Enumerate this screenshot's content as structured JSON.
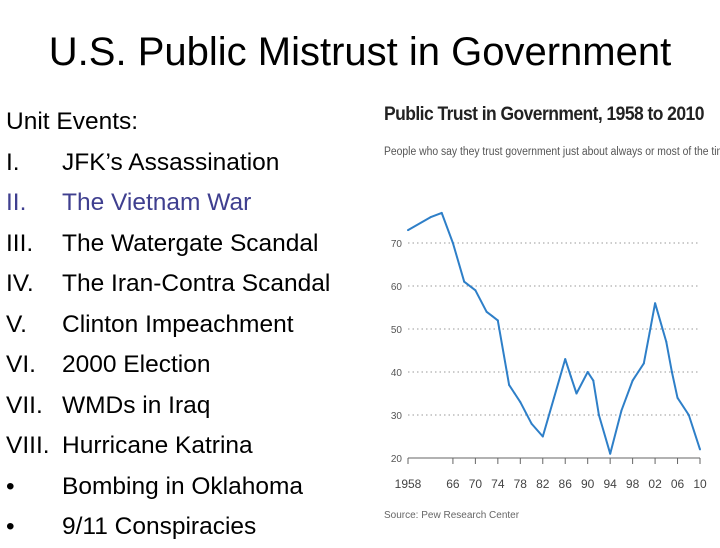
{
  "slide": {
    "title": "U.S. Public Mistrust in Government",
    "unit_heading": "Unit Events:",
    "events": [
      {
        "marker": "I.",
        "text": "JFK’s Assassination",
        "color": "#000000"
      },
      {
        "marker": "II.",
        "text": "The Vietnam War",
        "color": "#3f3f8f"
      },
      {
        "marker": "III.",
        "text": "The Watergate Scandal",
        "color": "#000000"
      },
      {
        "marker": "IV.",
        "text": "The Iran-Contra Scandal",
        "color": "#000000"
      },
      {
        "marker": "V.",
        "text": "Clinton Impeachment",
        "color": "#000000"
      },
      {
        "marker": "VI.",
        "text": "2000 Election",
        "color": "#000000"
      },
      {
        "marker": "VII.",
        "text": "WMDs in Iraq",
        "color": "#000000"
      },
      {
        "marker": "VIII.",
        "text": "Hurricane Katrina",
        "color": "#000000"
      },
      {
        "marker": "•",
        "text": "Bombing in Oklahoma",
        "color": "#000000"
      },
      {
        "marker": "•",
        "text": "9/11 Conspiracies",
        "color": "#000000"
      }
    ]
  },
  "chart_data": {
    "type": "line",
    "title": "Public Trust in Government, 1958 to 2010",
    "subtitle": "People who say they trust government just about always or most of the time",
    "source": "Source: Pew Research Center",
    "xlabel": "",
    "ylabel": "",
    "ylim": [
      20,
      80
    ],
    "yticks": [
      20,
      30,
      40,
      50,
      60,
      70
    ],
    "xlim": [
      1958,
      2010
    ],
    "xticks": [
      1958,
      1966,
      1970,
      1974,
      1978,
      1982,
      1986,
      1990,
      1994,
      1998,
      2002,
      2006,
      2010
    ],
    "xtick_labels": [
      "1958",
      "66",
      "70",
      "74",
      "78",
      "82",
      "86",
      "90",
      "94",
      "98",
      "02",
      "06",
      "10"
    ],
    "grid": "horizontal-dotted",
    "line_color": "#2e7fc8",
    "series": [
      {
        "name": "",
        "x": [
          1958,
          1962,
          1964,
          1966,
          1968,
          1970,
          1972,
          1973,
          1974,
          1976,
          1977,
          1978,
          1980,
          1982,
          1984,
          1986,
          1987,
          1988,
          1990,
          1991,
          1992,
          1994,
          1996,
          1998,
          1999,
          2000,
          2001,
          2002,
          2004,
          2005,
          2006,
          2008,
          2010
        ],
        "y": [
          73,
          76,
          77,
          70,
          61,
          59,
          54,
          53,
          52,
          37,
          35,
          33,
          28,
          25,
          34,
          43,
          39,
          35,
          40,
          38,
          30,
          21,
          31,
          38,
          40,
          42,
          49,
          56,
          47,
          40,
          34,
          30,
          22
        ]
      }
    ]
  }
}
